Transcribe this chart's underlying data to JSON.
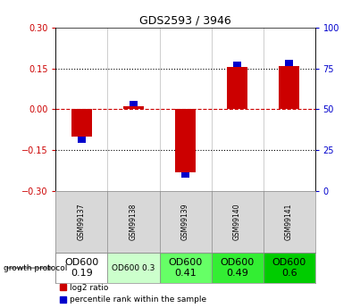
{
  "title": "GDS2593 / 3946",
  "samples": [
    "GSM99137",
    "GSM99138",
    "GSM99139",
    "GSM99140",
    "GSM99141"
  ],
  "log2_ratio": [
    -0.1,
    0.01,
    -0.23,
    0.155,
    0.16
  ],
  "percentile_rank": [
    34,
    56,
    12,
    70,
    68
  ],
  "ylim_left": [
    -0.3,
    0.3
  ],
  "ylim_right": [
    0,
    100
  ],
  "yticks_left": [
    -0.3,
    -0.15,
    0,
    0.15,
    0.3
  ],
  "yticks_right": [
    0,
    25,
    50,
    75,
    100
  ],
  "red_color": "#cc0000",
  "blue_color": "#0000cc",
  "bg_color": "#d8d8d8",
  "plot_bg_color": "#ffffff",
  "proto_colors": [
    "#ffffff",
    "#ccffcc",
    "#66ff66",
    "#33ee33",
    "#00cc00"
  ],
  "proto_labels": [
    "OD600\n0.19",
    "OD600 0.3",
    "OD600\n0.41",
    "OD600\n0.49",
    "OD600\n0.6"
  ],
  "proto_fontsizes": [
    8,
    6.5,
    8,
    8,
    8
  ]
}
